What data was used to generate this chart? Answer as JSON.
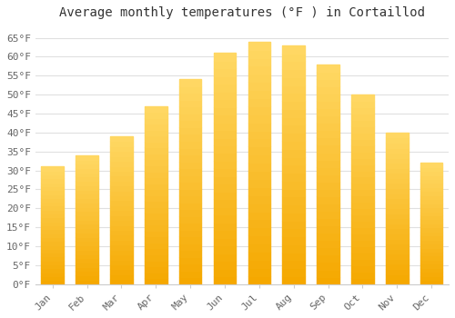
{
  "title": "Average monthly temperatures (°F ) in Cortaillod",
  "months": [
    "Jan",
    "Feb",
    "Mar",
    "Apr",
    "May",
    "Jun",
    "Jul",
    "Aug",
    "Sep",
    "Oct",
    "Nov",
    "Dec"
  ],
  "values": [
    31,
    34,
    39,
    47,
    54,
    61,
    64,
    63,
    58,
    50,
    40,
    32
  ],
  "bar_color_bottom": "#F5A800",
  "bar_color_top": "#FFD966",
  "background_color": "#FFFFFF",
  "grid_color": "#E0E0E0",
  "ylim": [
    0,
    68
  ],
  "yticks": [
    0,
    5,
    10,
    15,
    20,
    25,
    30,
    35,
    40,
    45,
    50,
    55,
    60,
    65
  ],
  "ylabel_suffix": "°F",
  "title_fontsize": 10,
  "tick_fontsize": 8,
  "font_family": "monospace",
  "tick_color": "#666666",
  "title_color": "#333333"
}
